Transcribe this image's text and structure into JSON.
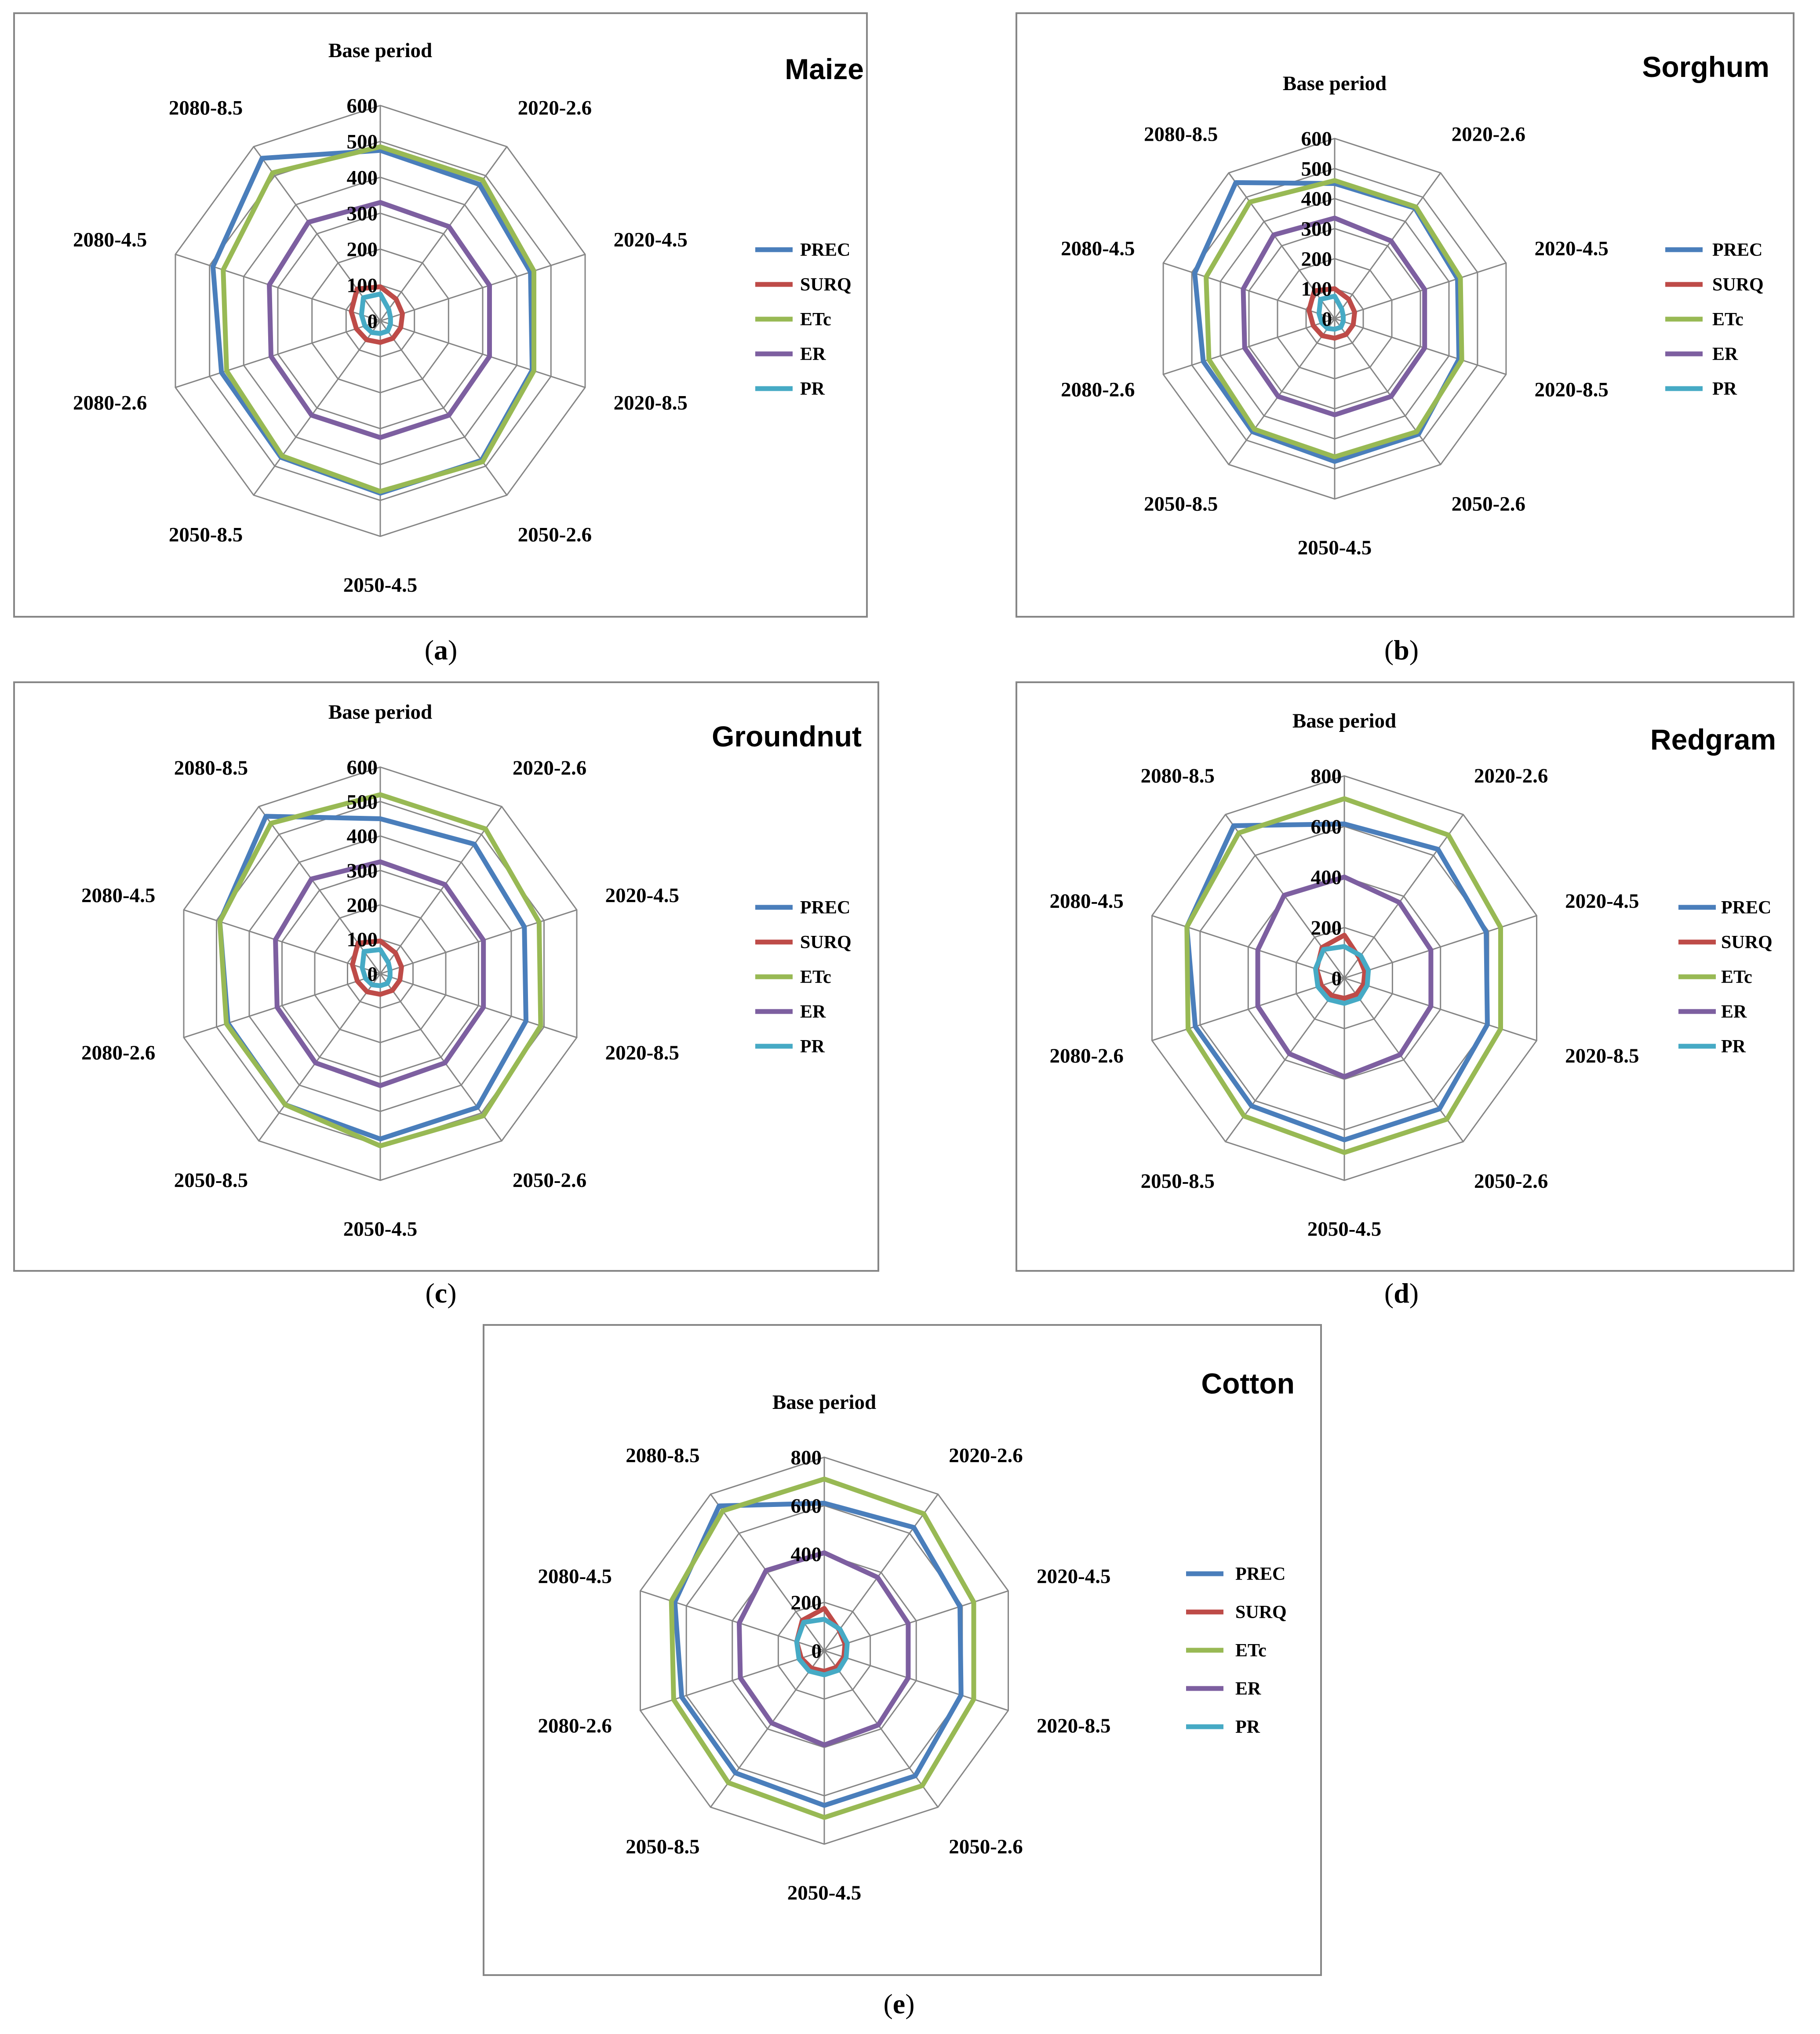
{
  "colors": {
    "PREC": "#4a7ebb",
    "SURQ": "#be4b48",
    "ETc": "#98b954",
    "ER": "#7d5fa0",
    "PR": "#46aac5",
    "grid": "#868686",
    "frame": "#868686"
  },
  "chart_data": [
    {
      "type": "radar",
      "title": "Maize",
      "caption": "a",
      "categories": [
        "Base period",
        "2020-2.6",
        "2020-4.5",
        "2020-8.5",
        "2050-2.6",
        "2050-4.5",
        "2050-8.5",
        "2080-2.6",
        "2080-4.5",
        "2080-8.5"
      ],
      "rlim": [
        0,
        600
      ],
      "ticks": [
        0,
        100,
        200,
        300,
        400,
        500,
        600
      ],
      "legend": "right",
      "series": [
        {
          "name": "PREC",
          "values": [
            475,
            470,
            440,
            445,
            480,
            480,
            470,
            465,
            490,
            560
          ]
        },
        {
          "name": "SURQ",
          "values": [
            95,
            75,
            65,
            60,
            60,
            60,
            65,
            70,
            85,
            110
          ]
        },
        {
          "name": "ETc",
          "values": [
            485,
            485,
            450,
            450,
            485,
            475,
            465,
            450,
            460,
            510
          ]
        },
        {
          "name": "ER",
          "values": [
            330,
            325,
            320,
            320,
            325,
            325,
            325,
            320,
            325,
            340
          ]
        },
        {
          "name": "PR",
          "values": [
            75,
            40,
            30,
            30,
            35,
            35,
            40,
            45,
            55,
            80
          ]
        }
      ]
    },
    {
      "type": "radar",
      "title": "Sorghum",
      "caption": "b",
      "categories": [
        "Base period",
        "2020-2.6",
        "2020-4.5",
        "2020-8.5",
        "2050-2.6",
        "2050-4.5",
        "2050-8.5",
        "2080-2.6",
        "2080-4.5",
        "2080-8.5"
      ],
      "rlim": [
        0,
        600
      ],
      "ticks": [
        0,
        100,
        200,
        300,
        400,
        500,
        600
      ],
      "legend": "right",
      "series": [
        {
          "name": "PREC",
          "values": [
            450,
            455,
            430,
            435,
            475,
            475,
            465,
            460,
            490,
            560
          ]
        },
        {
          "name": "SURQ",
          "values": [
            100,
            80,
            70,
            65,
            65,
            65,
            70,
            75,
            90,
            115
          ]
        },
        {
          "name": "ETc",
          "values": [
            460,
            460,
            440,
            445,
            465,
            460,
            455,
            440,
            450,
            480
          ]
        },
        {
          "name": "ER",
          "values": [
            335,
            320,
            315,
            315,
            320,
            320,
            320,
            315,
            320,
            345
          ]
        },
        {
          "name": "PR",
          "values": [
            75,
            40,
            30,
            30,
            35,
            35,
            40,
            45,
            55,
            80
          ]
        }
      ]
    },
    {
      "type": "radar",
      "title": "Groundnut",
      "caption": "c",
      "categories": [
        "Base period",
        "2020-2.6",
        "2020-4.5",
        "2020-8.5",
        "2050-2.6",
        "2050-4.5",
        "2050-8.5",
        "2080-2.6",
        "2080-4.5",
        "2080-8.5"
      ],
      "rlim": [
        0,
        600
      ],
      "ticks": [
        0,
        100,
        200,
        300,
        400,
        500,
        600
      ],
      "legend": "right",
      "series": [
        {
          "name": "PREC",
          "values": [
            450,
            465,
            440,
            445,
            480,
            480,
            470,
            465,
            490,
            565
          ]
        },
        {
          "name": "SURQ",
          "values": [
            95,
            75,
            65,
            60,
            60,
            60,
            65,
            70,
            85,
            110
          ]
        },
        {
          "name": "ETc",
          "values": [
            520,
            520,
            485,
            490,
            510,
            500,
            470,
            470,
            490,
            540
          ]
        },
        {
          "name": "ER",
          "values": [
            325,
            320,
            315,
            315,
            320,
            325,
            320,
            315,
            320,
            340
          ]
        },
        {
          "name": "PR",
          "values": [
            70,
            40,
            30,
            30,
            35,
            35,
            40,
            45,
            55,
            80
          ]
        }
      ]
    },
    {
      "type": "radar",
      "title": "Redgram",
      "caption": "d",
      "categories": [
        "Base period",
        "2020-2.6",
        "2020-4.5",
        "2020-8.5",
        "2050-2.6",
        "2050-4.5",
        "2050-8.5",
        "2080-2.6",
        "2080-4.5",
        "2080-8.5"
      ],
      "rlim": [
        0,
        800
      ],
      "ticks": [
        0,
        200,
        400,
        600,
        800
      ],
      "legend": "right",
      "series": [
        {
          "name": "PREC",
          "values": [
            610,
            630,
            590,
            595,
            640,
            640,
            625,
            620,
            655,
            745
          ]
        },
        {
          "name": "SURQ",
          "values": [
            170,
            100,
            85,
            80,
            80,
            80,
            85,
            95,
            115,
            150
          ]
        },
        {
          "name": "ETc",
          "values": [
            710,
            700,
            650,
            650,
            690,
            690,
            675,
            650,
            655,
            710
          ]
        },
        {
          "name": "ER",
          "values": [
            400,
            370,
            360,
            360,
            375,
            390,
            370,
            360,
            360,
            405
          ]
        },
        {
          "name": "PR",
          "values": [
            125,
            110,
            100,
            95,
            100,
            100,
            105,
            110,
            120,
            140
          ]
        }
      ]
    },
    {
      "type": "radar",
      "title": "Cotton",
      "caption": "e",
      "categories": [
        "Base period",
        "2020-2.6",
        "2020-4.5",
        "2020-8.5",
        "2050-2.6",
        "2050-4.5",
        "2050-8.5",
        "2080-2.6",
        "2080-4.5",
        "2080-8.5"
      ],
      "rlim": [
        0,
        800
      ],
      "ticks": [
        0,
        200,
        400,
        600,
        800
      ],
      "legend": "right",
      "series": [
        {
          "name": "PREC",
          "values": [
            610,
            630,
            590,
            595,
            640,
            640,
            625,
            620,
            650,
            740
          ]
        },
        {
          "name": "SURQ",
          "values": [
            175,
            105,
            90,
            85,
            85,
            85,
            90,
            100,
            120,
            155
          ]
        },
        {
          "name": "ETc",
          "values": [
            710,
            700,
            650,
            650,
            690,
            690,
            675,
            655,
            665,
            715
          ]
        },
        {
          "name": "ER",
          "values": [
            405,
            375,
            365,
            365,
            380,
            390,
            370,
            365,
            370,
            410
          ]
        },
        {
          "name": "PR",
          "values": [
            130,
            110,
            100,
            95,
            100,
            100,
            105,
            110,
            120,
            145
          ]
        }
      ]
    }
  ]
}
